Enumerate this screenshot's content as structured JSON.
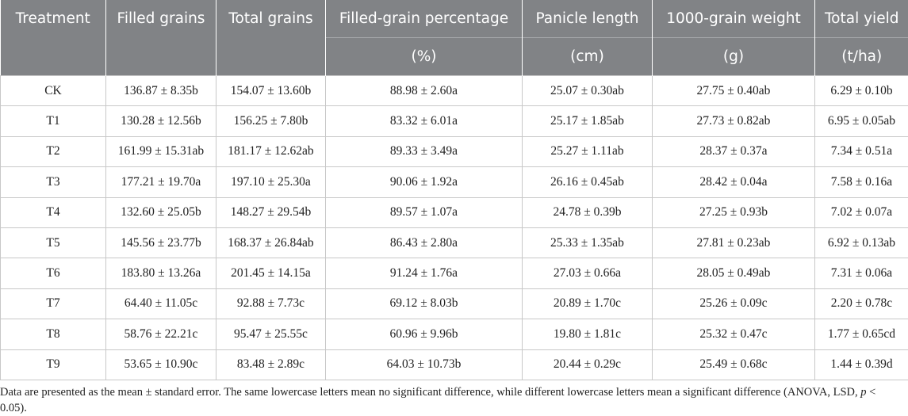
{
  "table": {
    "columns": [
      {
        "name": "Treatment"
      },
      {
        "name": "Filled grains"
      },
      {
        "name": "Total grains"
      },
      {
        "name": "Filled-grain percentage",
        "unit": "(%)"
      },
      {
        "name": "Panicle length",
        "unit": "(cm)"
      },
      {
        "name": "1000-grain weight",
        "unit": "(g)"
      },
      {
        "name": "Total yield",
        "unit": "(t/ha)"
      }
    ],
    "rows": [
      [
        "CK",
        "136.87 ± 8.35b",
        "154.07 ± 13.60b",
        "88.98 ± 2.60a",
        "25.07 ± 0.30ab",
        "27.75 ± 0.40ab",
        "6.29 ± 0.10b"
      ],
      [
        "T1",
        "130.28 ± 12.56b",
        "156.25 ± 7.80b",
        "83.32 ± 6.01a",
        "25.17 ± 1.85ab",
        "27.73 ± 0.82ab",
        "6.95 ± 0.05ab"
      ],
      [
        "T2",
        "161.99 ± 15.31ab",
        "181.17 ± 12.62ab",
        "89.33 ± 3.49a",
        "25.27 ± 1.11ab",
        "28.37 ± 0.37a",
        "7.34 ± 0.51a"
      ],
      [
        "T3",
        "177.21 ± 19.70a",
        "197.10 ± 25.30a",
        "90.06 ± 1.92a",
        "26.16 ± 0.45ab",
        "28.42 ± 0.04a",
        "7.58 ± 0.16a"
      ],
      [
        "T4",
        "132.60 ± 25.05b",
        "148.27 ± 29.54b",
        "89.57 ± 1.07a",
        "24.78 ± 0.39b",
        "27.25 ± 0.93b",
        "7.02 ± 0.07a"
      ],
      [
        "T5",
        "145.56 ± 23.77b",
        "168.37 ± 26.84ab",
        "86.43 ± 2.80a",
        "25.33 ± 1.35ab",
        "27.81 ± 0.23ab",
        "6.92 ± 0.13ab"
      ],
      [
        "T6",
        "183.80 ± 13.26a",
        "201.45 ± 14.15a",
        "91.24 ± 1.76a",
        "27.03 ± 0.66a",
        "28.05 ± 0.49ab",
        "7.31 ± 0.06a"
      ],
      [
        "T7",
        "64.40 ± 11.05c",
        "92.88 ± 7.73c",
        "69.12 ± 8.03b",
        "20.89 ± 1.70c",
        "25.26 ± 0.09c",
        "2.20 ± 0.78c"
      ],
      [
        "T8",
        "58.76 ± 22.21c",
        "95.47 ± 25.55c",
        "60.96 ± 9.96b",
        "19.80 ± 1.81c",
        "25.32 ± 0.47c",
        "1.77 ± 0.65cd"
      ],
      [
        "T9",
        "53.65 ± 10.90c",
        "83.48 ± 2.89c",
        "64.03 ± 10.73b",
        "20.44 ± 0.29c",
        "25.49 ± 0.68c",
        "1.44 ± 0.39d"
      ]
    ]
  },
  "footnote": {
    "before": "Data are presented as the mean ± standard error. The same lowercase letters mean no significant difference, while different lowercase letters mean a significant difference (ANOVA, LSD, ",
    "italic": "p",
    "after": " < 0.05)."
  }
}
